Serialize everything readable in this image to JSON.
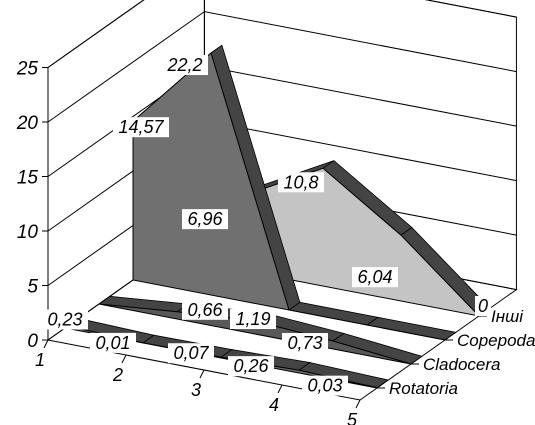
{
  "chart_data": {
    "type": "area",
    "three_d": true,
    "categories": [
      "1",
      "2",
      "3",
      "4",
      "5"
    ],
    "ylim": [
      0,
      25
    ],
    "yticks": [
      "0",
      "5",
      "10",
      "15",
      "20",
      "25"
    ],
    "series": [
      {
        "name": "Rotatoria",
        "values": [
          0.23,
          0.01,
          0.07,
          0.26,
          0.03
        ],
        "color": "#6b6b6b"
      },
      {
        "name": "Cladocera",
        "values": [
          null,
          0.66,
          1.19,
          0.73,
          null
        ],
        "color": "#585858"
      },
      {
        "name": "Copepoda",
        "values": [
          14.57,
          22.2,
          null,
          null,
          null
        ],
        "color": "#707070"
      },
      {
        "name": "Інші",
        "values": [
          null,
          6.96,
          10.8,
          6.04,
          null
        ],
        "color": "#c4c4c4"
      }
    ],
    "data_labels": [
      {
        "text": "14,57"
      },
      {
        "text": "22,2"
      },
      {
        "text": "6,96"
      },
      {
        "text": "10,8"
      },
      {
        "text": "6,04"
      },
      {
        "text": "0,23"
      },
      {
        "text": "0,01"
      },
      {
        "text": "0,07"
      },
      {
        "text": "0,26"
      },
      {
        "text": "0,03"
      },
      {
        "text": "0,66"
      },
      {
        "text": "1,19"
      },
      {
        "text": "0,73"
      },
      {
        "text": "0"
      }
    ]
  }
}
